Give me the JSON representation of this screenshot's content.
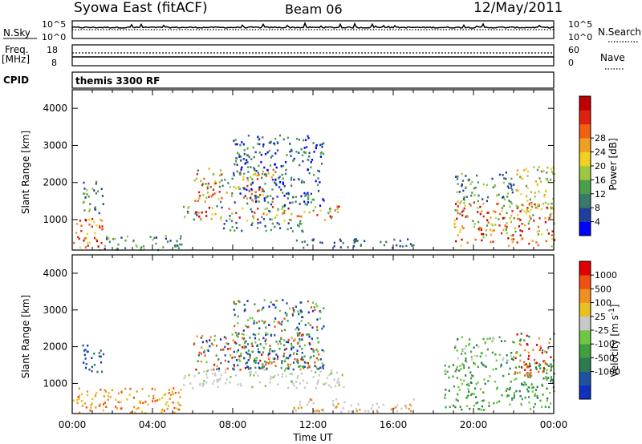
{
  "header": {
    "station": "Syowa East (fitACF)",
    "beam": "Beam 06",
    "date": "12/May/2011"
  },
  "panels": {
    "noise": {
      "left_label": "N.Sky",
      "left_ticks": [
        "10^5",
        "10^0"
      ],
      "right_ticks": [
        "10^5",
        "10^0"
      ],
      "right_label": "N.Search"
    },
    "freq": {
      "left_label_1": "Freq.",
      "left_label_2": "[MHz]",
      "left_ticks": [
        "18",
        "8"
      ],
      "right_ticks": [
        "60",
        "0"
      ],
      "right_label": "Nave"
    },
    "cpid": {
      "label": "CPID",
      "value": "themis 3300 RF"
    }
  },
  "chart_data": [
    {
      "type": "heatmap",
      "name": "power",
      "ylabel": "Slant Range [km]",
      "xlabel": "",
      "ylim": [
        180,
        4500
      ],
      "xlim": [
        0,
        24
      ],
      "yticks": [
        1000,
        2000,
        3000,
        4000
      ],
      "colorbar": {
        "label": "Power [dB]",
        "ticks": [
          "4",
          "8",
          "12",
          "16",
          "20",
          "24",
          "28"
        ],
        "colors": [
          "#0000ff",
          "#1f3f9f",
          "#3a7a6a",
          "#4aa04a",
          "#9ac840",
          "#f0d020",
          "#f0a020",
          "#f06010",
          "#e02010",
          "#c00000"
        ]
      },
      "regions": [
        {
          "t0": 0.0,
          "t1": 1.5,
          "r0": 200,
          "r1": 1100,
          "c": [
            5,
            6,
            7,
            8,
            9
          ]
        },
        {
          "t0": 0.5,
          "t1": 1.6,
          "r0": 1200,
          "r1": 2100,
          "c": [
            1,
            2,
            3,
            4
          ]
        },
        {
          "t0": 1.5,
          "t1": 5.5,
          "r0": 200,
          "r1": 600,
          "c": [
            1,
            2,
            3,
            4
          ]
        },
        {
          "t0": 5.5,
          "t1": 13.5,
          "r0": 1000,
          "r1": 1400,
          "c": [
            1,
            2,
            3,
            4,
            5,
            6,
            7,
            8,
            9
          ]
        },
        {
          "t0": 6.0,
          "t1": 10.0,
          "r0": 1500,
          "r1": 2400,
          "c": [
            2,
            3,
            4,
            5,
            6,
            7,
            8
          ]
        },
        {
          "t0": 8.0,
          "t1": 12.5,
          "r0": 1400,
          "r1": 3300,
          "c": [
            0,
            1,
            2,
            3
          ]
        },
        {
          "t0": 7.5,
          "t1": 11.5,
          "r0": 700,
          "r1": 1000,
          "c": [
            1,
            2,
            3
          ]
        },
        {
          "t0": 11.0,
          "t1": 17.0,
          "r0": 250,
          "r1": 500,
          "c": [
            1,
            2
          ]
        },
        {
          "t0": 19.0,
          "t1": 24.0,
          "r0": 300,
          "r1": 1500,
          "c": [
            3,
            4,
            5,
            6,
            7,
            8,
            9
          ]
        },
        {
          "t0": 19.0,
          "t1": 22.0,
          "r0": 1500,
          "r1": 2300,
          "c": [
            1,
            2,
            3,
            4
          ]
        },
        {
          "t0": 22.0,
          "t1": 24.0,
          "r0": 1200,
          "r1": 2500,
          "c": [
            3,
            4,
            5,
            6
          ]
        }
      ]
    },
    {
      "type": "heatmap",
      "name": "velocity",
      "ylabel": "Slant Range [km]",
      "xlabel": "Time UT",
      "ylim": [
        180,
        4500
      ],
      "xlim": [
        0,
        24
      ],
      "yticks": [
        1000,
        2000,
        3000,
        4000
      ],
      "xticks": [
        "00:00",
        "04:00",
        "08:00",
        "12:00",
        "16:00",
        "20:00",
        "00:00"
      ],
      "colorbar": {
        "label": "Velocity [m s^-1]",
        "ticks": [
          "1000",
          "500",
          "100",
          "25",
          "-25",
          "-100",
          "-500",
          "-1000"
        ],
        "colors": [
          "#1030c0",
          "#2050a0",
          "#2e7a50",
          "#40a040",
          "#70c840",
          "#c8c8c8",
          "#e8c020",
          "#f09020",
          "#f05010",
          "#e00000"
        ]
      },
      "regions": [
        {
          "t0": 0.0,
          "t1": 5.5,
          "r0": 200,
          "r1": 900,
          "c": [
            6,
            7,
            8
          ]
        },
        {
          "t0": 0.5,
          "t1": 1.6,
          "r0": 1300,
          "r1": 2100,
          "c": [
            0,
            1,
            2
          ]
        },
        {
          "t0": 5.5,
          "t1": 13.5,
          "r0": 900,
          "r1": 1400,
          "c": [
            5,
            5,
            5,
            4
          ]
        },
        {
          "t0": 6.0,
          "t1": 12.0,
          "r0": 1400,
          "r1": 2400,
          "c": [
            0,
            1,
            2,
            3,
            4,
            7,
            8,
            9
          ]
        },
        {
          "t0": 8.0,
          "t1": 12.5,
          "r0": 1400,
          "r1": 3300,
          "c": [
            0,
            1,
            3,
            4,
            8
          ]
        },
        {
          "t0": 11.0,
          "t1": 17.0,
          "r0": 250,
          "r1": 600,
          "c": [
            5,
            5,
            7
          ]
        },
        {
          "t0": 18.5,
          "t1": 24.0,
          "r0": 300,
          "r1": 1600,
          "c": [
            2,
            3,
            3,
            4
          ]
        },
        {
          "t0": 19.0,
          "t1": 22.0,
          "r0": 1600,
          "r1": 2300,
          "c": [
            2,
            3,
            4,
            5
          ]
        },
        {
          "t0": 22.0,
          "t1": 24.0,
          "r0": 1200,
          "r1": 2400,
          "c": [
            7,
            8,
            9,
            2,
            3
          ]
        }
      ]
    }
  ]
}
